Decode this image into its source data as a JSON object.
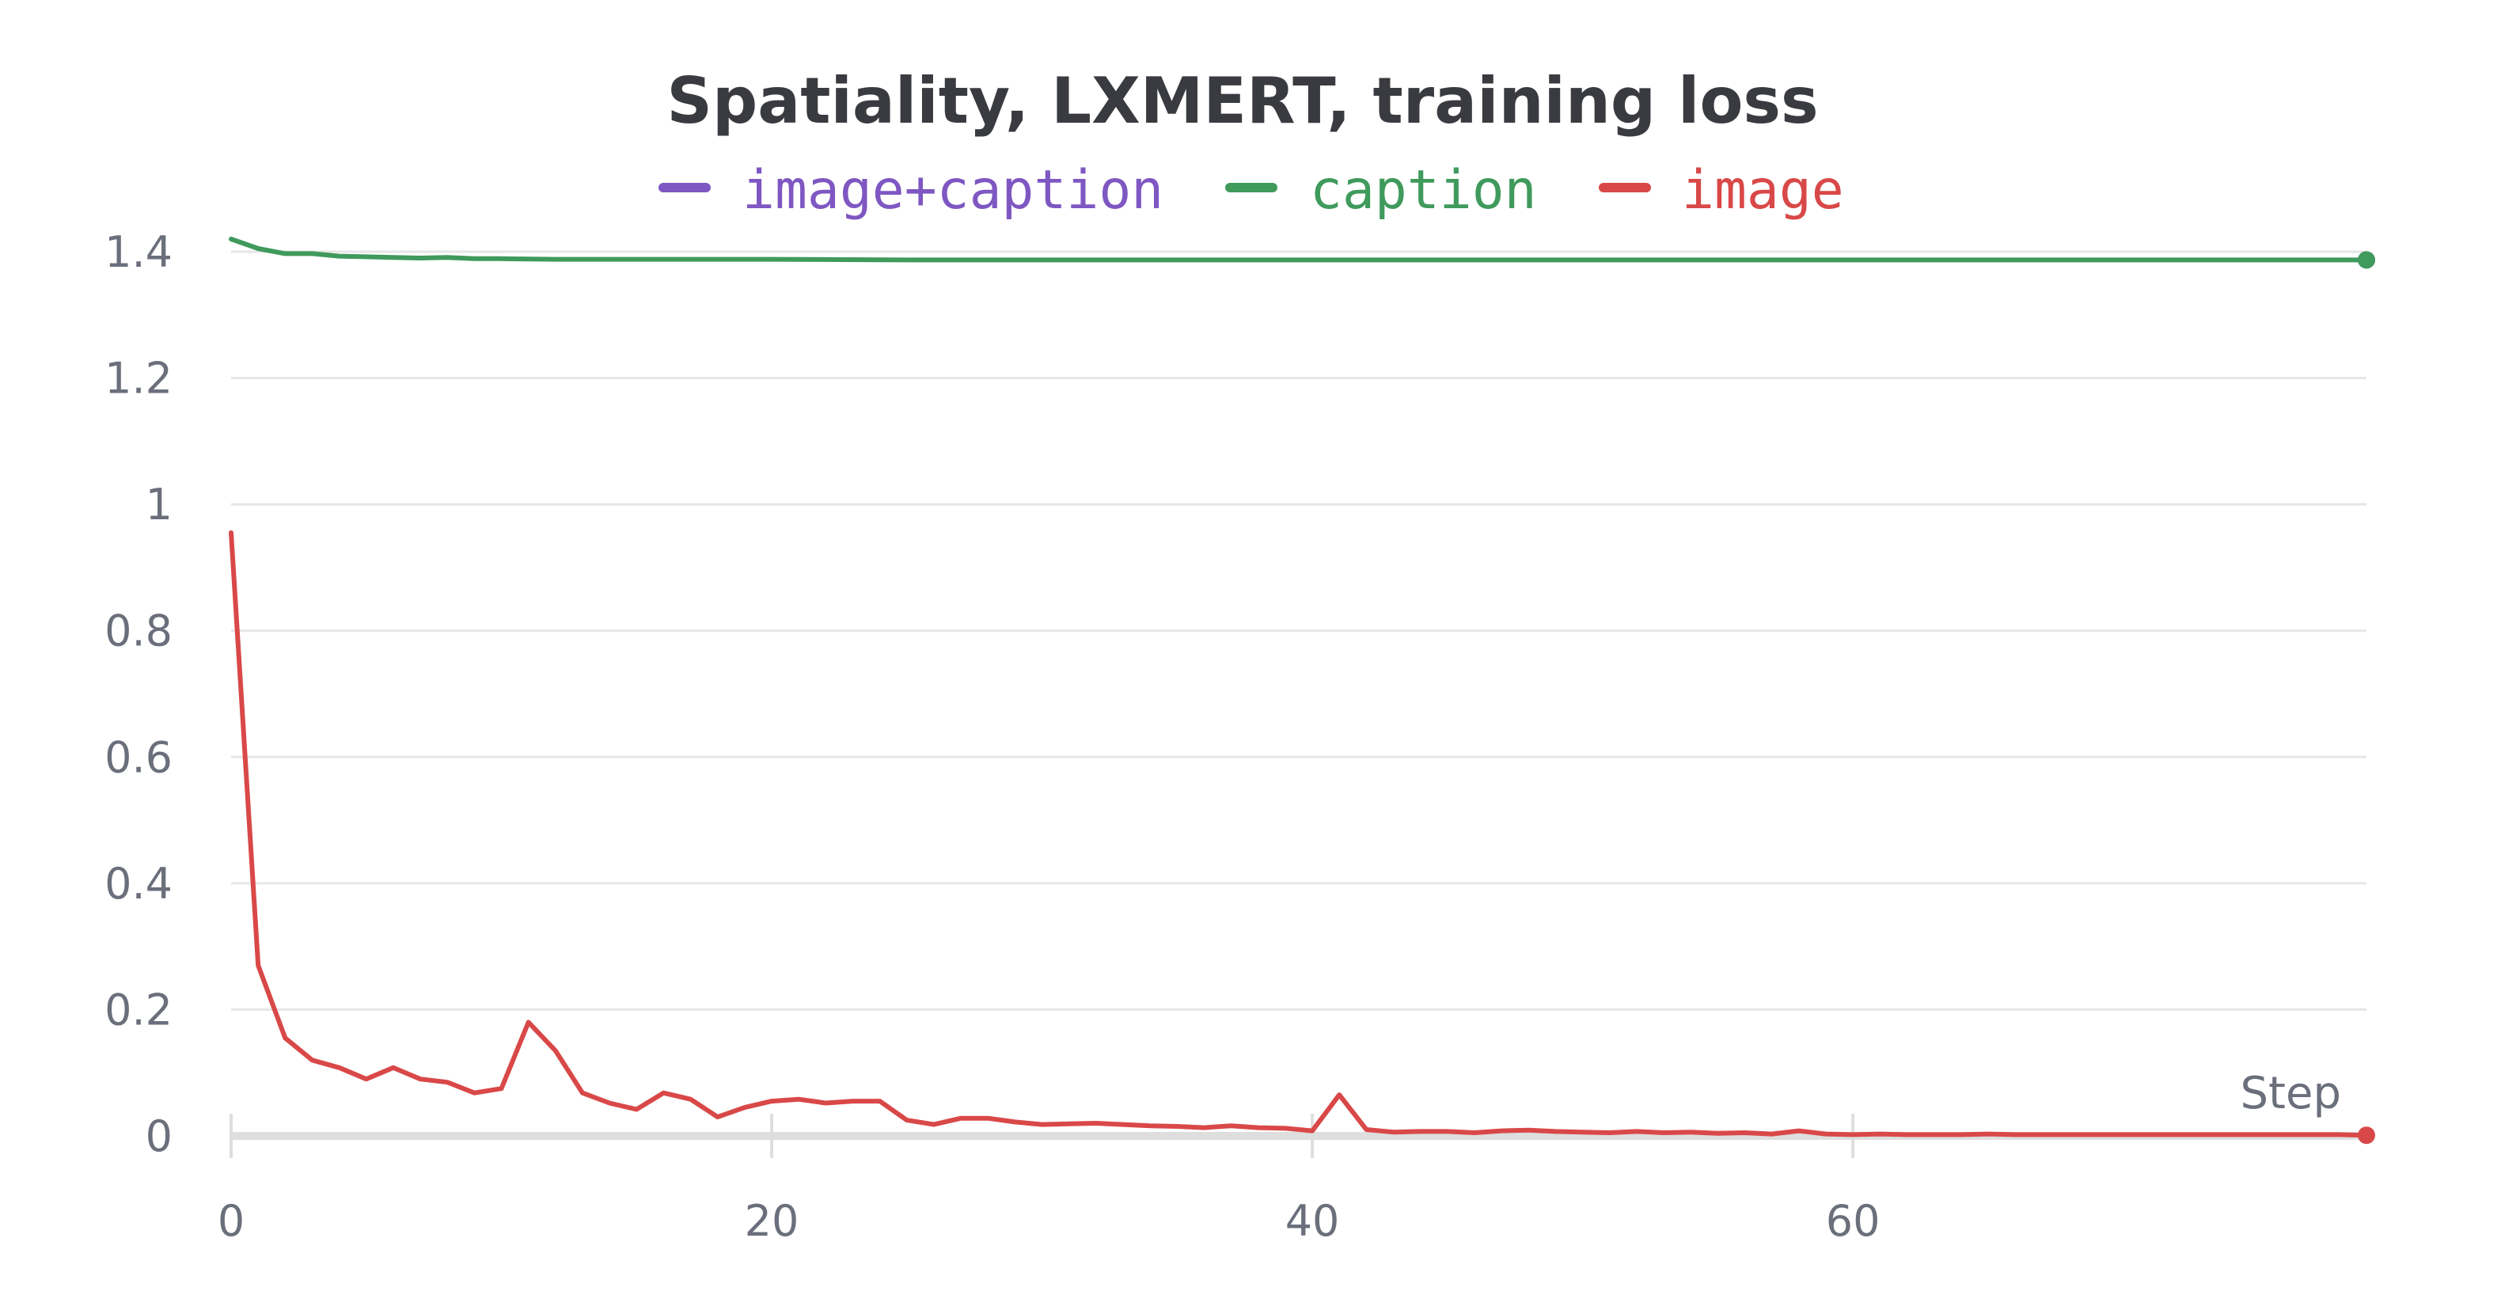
{
  "chart_data": {
    "type": "line",
    "title": "Spatiality, LXMERT, training loss",
    "xlabel": "Step",
    "ylabel": "",
    "xlim": [
      0,
      79
    ],
    "ylim": [
      0,
      1.4
    ],
    "x_ticks": [
      0,
      20,
      40,
      60
    ],
    "x_tick_labels": [
      "0",
      "20",
      "40",
      "60"
    ],
    "y_ticks": [
      0,
      0.2,
      0.4,
      0.6,
      0.8,
      1.0,
      1.2,
      1.4
    ],
    "y_tick_labels": [
      "0",
      "0.2",
      "0.4",
      "0.6",
      "0.8",
      "1",
      "1.2",
      "1.4"
    ],
    "grid": true,
    "legend_position": "top-center",
    "series": [
      {
        "name": "image+caption",
        "color": "#7e57c2",
        "x": [
          79
        ],
        "values": [
          1.387
        ]
      },
      {
        "name": "caption",
        "color": "#3f9a5c",
        "x": [
          0,
          1,
          2,
          3,
          4,
          5,
          6,
          7,
          8,
          9,
          10,
          12,
          15,
          20,
          25,
          30,
          40,
          50,
          60,
          70,
          79
        ],
        "values": [
          1.42,
          1.405,
          1.397,
          1.397,
          1.393,
          1.392,
          1.391,
          1.39,
          1.391,
          1.389,
          1.389,
          1.388,
          1.388,
          1.388,
          1.387,
          1.387,
          1.387,
          1.387,
          1.387,
          1.387,
          1.387
        ]
      },
      {
        "name": "image",
        "color": "#d94848",
        "x": [
          0,
          1,
          2,
          3,
          4,
          5,
          6,
          7,
          8,
          9,
          10,
          11,
          12,
          13,
          14,
          15,
          16,
          17,
          18,
          19,
          20,
          21,
          22,
          23,
          24,
          25,
          26,
          27,
          28,
          29,
          30,
          31,
          32,
          33,
          34,
          35,
          36,
          37,
          38,
          39,
          40,
          41,
          42,
          43,
          44,
          45,
          46,
          47,
          48,
          49,
          50,
          51,
          52,
          53,
          54,
          55,
          56,
          57,
          58,
          59,
          60,
          61,
          62,
          63,
          64,
          65,
          66,
          67,
          68,
          69,
          70,
          71,
          72,
          73,
          74,
          75,
          76,
          77,
          78,
          79
        ],
        "values": [
          0.955,
          0.27,
          0.155,
          0.12,
          0.108,
          0.09,
          0.108,
          0.09,
          0.085,
          0.068,
          0.075,
          0.18,
          0.135,
          0.068,
          0.052,
          0.042,
          0.068,
          0.058,
          0.03,
          0.045,
          0.055,
          0.058,
          0.052,
          0.055,
          0.055,
          0.025,
          0.018,
          0.028,
          0.028,
          0.022,
          0.018,
          0.019,
          0.02,
          0.018,
          0.016,
          0.015,
          0.013,
          0.016,
          0.013,
          0.012,
          0.008,
          0.065,
          0.01,
          0.006,
          0.007,
          0.007,
          0.005,
          0.008,
          0.009,
          0.007,
          0.006,
          0.005,
          0.007,
          0.005,
          0.006,
          0.004,
          0.005,
          0.003,
          0.008,
          0.003,
          0.002,
          0.003,
          0.002,
          0.002,
          0.002,
          0.003,
          0.002,
          0.002,
          0.002,
          0.002,
          0.002,
          0.002,
          0.002,
          0.002,
          0.002,
          0.002,
          0.002,
          0.002,
          0.002,
          0.001
        ]
      }
    ]
  }
}
